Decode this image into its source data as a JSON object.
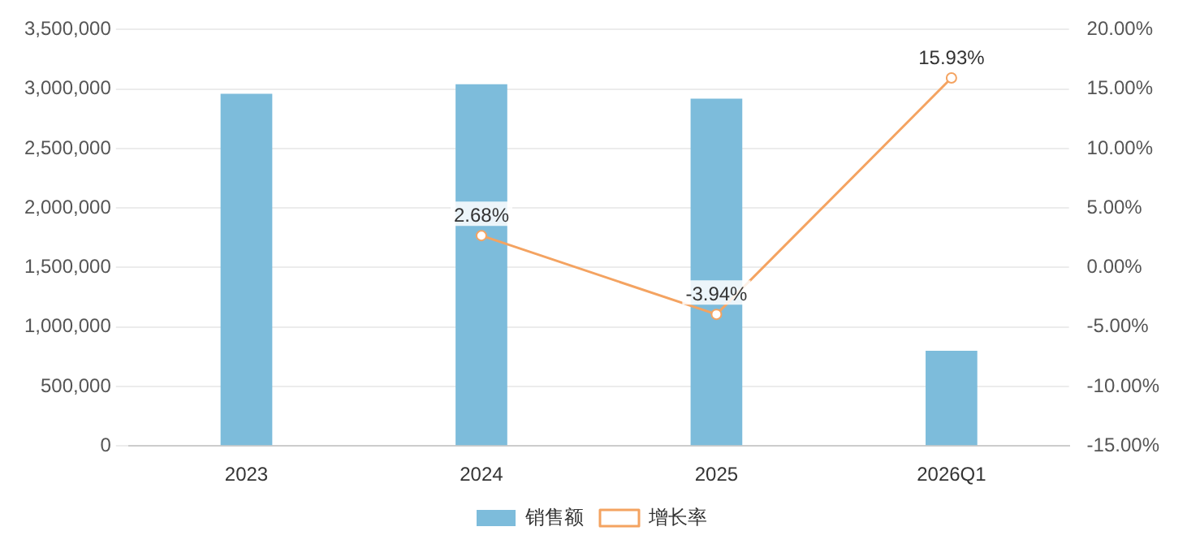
{
  "chart_data": {
    "type": "bar",
    "categories": [
      "2023",
      "2024",
      "2025",
      "2026Q1"
    ],
    "series": [
      {
        "name": "销售额",
        "color": "#7dbcdb",
        "values": [
          2960000,
          3040000,
          2920000,
          800000
        ]
      },
      {
        "name": "增长率",
        "type": "line",
        "axis": "y2",
        "color": "#f4a361",
        "values": [
          null,
          2.68,
          -3.94,
          15.93
        ],
        "value_labels": [
          null,
          "2.68%",
          "-3.94%",
          "15.93%"
        ]
      }
    ],
    "ylim": [
      0,
      3500000
    ],
    "yticks": [
      {
        "value": 0,
        "label": "0"
      },
      {
        "value": 500000,
        "label": "500,000"
      },
      {
        "value": 1000000,
        "label": "1,000,000"
      },
      {
        "value": 1500000,
        "label": "1,500,000"
      },
      {
        "value": 2000000,
        "label": "2,000,000"
      },
      {
        "value": 2500000,
        "label": "2,500,000"
      },
      {
        "value": 3000000,
        "label": "3,000,000"
      },
      {
        "value": 3500000,
        "label": "3,500,000"
      }
    ],
    "y2lim": [
      -15,
      20
    ],
    "y2ticks": [
      {
        "value": -15,
        "label": "-15.00%"
      },
      {
        "value": -10,
        "label": "-10.00%"
      },
      {
        "value": -5,
        "label": "-5.00%"
      },
      {
        "value": 0,
        "label": "0.00%"
      },
      {
        "value": 5,
        "label": "5.00%"
      },
      {
        "value": 10,
        "label": "10.00%"
      },
      {
        "value": 15,
        "label": "15.00%"
      },
      {
        "value": 20,
        "label": "20.00%"
      }
    ],
    "grid": "y",
    "legend": "bottom",
    "marker": "circle",
    "line_style": "solid"
  }
}
